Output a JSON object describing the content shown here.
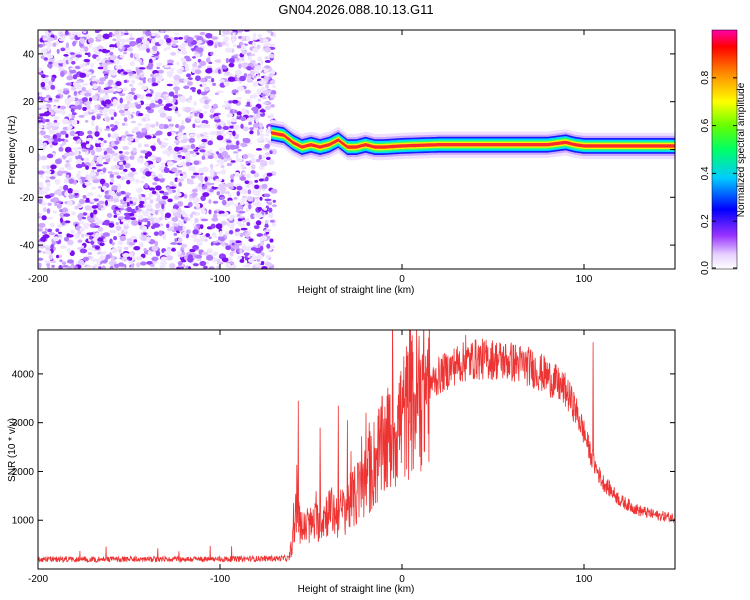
{
  "title": "GN04.2026.088.10.13.G11",
  "chart_data": [
    {
      "type": "heatmap",
      "name": "spectrogram",
      "xlabel": "Height of straight line (km)",
      "ylabel": "Frequency (Hz)",
      "xlim": [
        -200,
        150
      ],
      "ylim": [
        -50,
        50
      ],
      "xticks": [
        -200,
        -100,
        0,
        100
      ],
      "xtick_labels": [
        "-200",
        "-100",
        "0",
        "100"
      ],
      "yticks": [
        -40,
        -20,
        0,
        20,
        40
      ],
      "ytick_labels": [
        "-40",
        "-20",
        "0",
        "20",
        "40"
      ],
      "colorbar": {
        "label": "Normalized spectral amplitude",
        "range": [
          0,
          1
        ],
        "ticks": [
          0.0,
          0.2,
          0.4,
          0.6,
          0.8
        ],
        "tick_labels": [
          "0.0",
          "0.2",
          "0.4",
          "0.6",
          "0.8"
        ]
      },
      "noise_region_x": [
        -200,
        -70
      ],
      "ridge": {
        "x": [
          -72,
          -65,
          -60,
          -55,
          -50,
          -45,
          -40,
          -35,
          -30,
          -25,
          -20,
          -15,
          -10,
          0,
          20,
          50,
          80,
          90,
          95,
          100,
          120,
          150
        ],
        "freq": [
          7,
          6,
          3,
          1,
          2,
          1,
          2,
          4,
          1,
          1,
          2,
          1,
          1,
          1.5,
          2,
          2,
          2,
          3,
          2,
          1.5,
          1.5,
          1.5
        ]
      }
    },
    {
      "type": "line",
      "name": "snr",
      "xlabel": "Height of straight line (km)",
      "ylabel": "SNR (10 * v/v)",
      "xlim": [
        -200,
        150
      ],
      "ylim": [
        0,
        4900
      ],
      "xticks": [
        -200,
        -100,
        0,
        100
      ],
      "xtick_labels": [
        "-200",
        "-100",
        "0",
        "100"
      ],
      "yticks": [
        1000,
        2000,
        3000,
        4000
      ],
      "ytick_labels": [
        "1000",
        "2000",
        "3000",
        "4000"
      ],
      "color": "#ee3333",
      "envelope": {
        "x": [
          -200,
          -150,
          -100,
          -62,
          -60,
          -58,
          -55,
          -50,
          -45,
          -40,
          -35,
          -30,
          -25,
          -20,
          -15,
          -10,
          -5,
          0,
          10,
          20,
          30,
          40,
          50,
          60,
          70,
          80,
          90,
          95,
          100,
          105,
          110,
          120,
          130,
          140,
          150
        ],
        "y": [
          200,
          200,
          200,
          220,
          600,
          1200,
          800,
          900,
          1000,
          1200,
          1100,
          1300,
          1500,
          1800,
          2200,
          2500,
          2800,
          3100,
          3600,
          3950,
          4200,
          4300,
          4300,
          4250,
          4150,
          3950,
          3650,
          3300,
          2800,
          2200,
          1800,
          1400,
          1200,
          1100,
          1050
        ]
      },
      "spikes": [
        {
          "x": -57,
          "y": 3450
        },
        {
          "x": -45,
          "y": 2900
        },
        {
          "x": -35,
          "y": 3350
        },
        {
          "x": -30,
          "y": 3050
        },
        {
          "x": -18,
          "y": 3000
        },
        {
          "x": 14,
          "y": 4500
        },
        {
          "x": 35,
          "y": 4800
        },
        {
          "x": 105,
          "y": 4650
        }
      ]
    }
  ]
}
